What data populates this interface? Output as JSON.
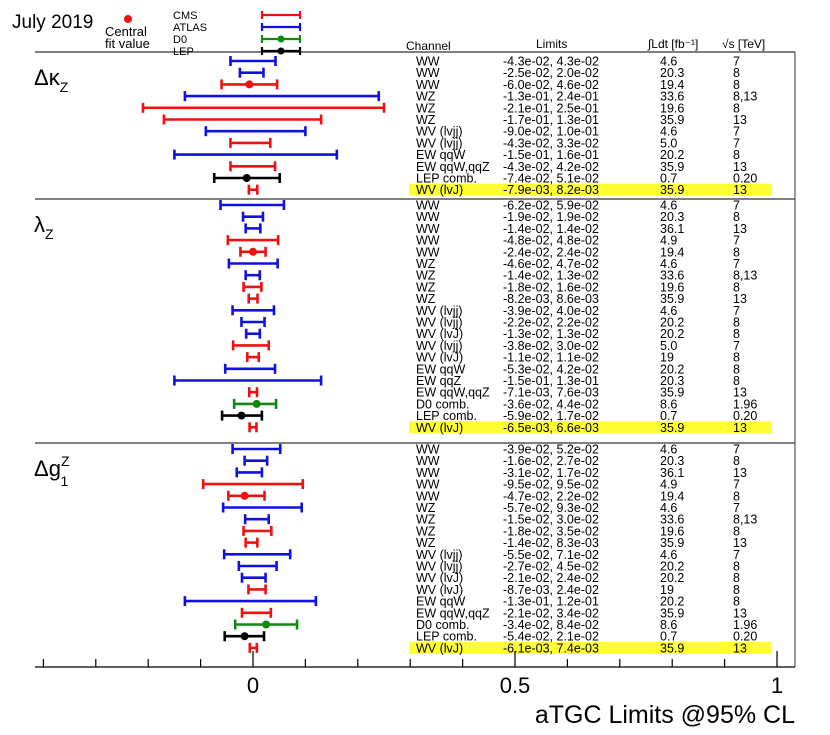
{
  "chart_data": {
    "type": "errorbar",
    "title": "July 2019",
    "xlabel": "aTGC Limits @95% CL",
    "xlim": [
      -0.41,
      1.02
    ],
    "xticks": [
      0,
      0.5,
      1
    ],
    "xtick_labels": [
      "0",
      "0.5",
      "1"
    ],
    "headers": {
      "channel": "Channel",
      "limits": "Limits",
      "lumi": "∫Ldt [fb⁻¹]",
      "energy": "√s [TeV]"
    },
    "legend": {
      "central_label_1": "Central",
      "central_label_2": "fit value",
      "entries": [
        {
          "name": "CMS",
          "color": "#ee1111"
        },
        {
          "name": "ATLAS",
          "color": "#1111dd"
        },
        {
          "name": "D0",
          "color": "#118811"
        },
        {
          "name": "LEP",
          "color": "#000000"
        }
      ]
    },
    "colors": {
      "CMS": "#ee1111",
      "ATLAS": "#1111dd",
      "D0": "#118811",
      "LEP": "#000000"
    },
    "highlight_color": "#ffff33",
    "panels": [
      {
        "label_main": "Δκ",
        "label_sub": "Z",
        "rows": [
          {
            "channel": "WW",
            "limits": "-4.3e-02, 4.3e-02",
            "lumi": "4.6",
            "energy": "7",
            "exp": "ATLAS",
            "low": -0.043,
            "high": 0.043,
            "central": null,
            "highlight": false
          },
          {
            "channel": "WW",
            "limits": "-2.5e-02, 2.0e-02",
            "lumi": "20.3",
            "energy": "8",
            "exp": "ATLAS",
            "low": -0.025,
            "high": 0.02,
            "central": null,
            "highlight": false
          },
          {
            "channel": "WW",
            "limits": "-6.0e-02, 4.6e-02",
            "lumi": "19.4",
            "energy": "8",
            "exp": "CMS",
            "low": -0.06,
            "high": 0.046,
            "central": -0.007,
            "highlight": false
          },
          {
            "channel": "WZ",
            "limits": "-1.3e-01, 2.4e-01",
            "lumi": "33.6",
            "energy": "8,13",
            "exp": "ATLAS",
            "low": -0.13,
            "high": 0.24,
            "central": null,
            "highlight": false
          },
          {
            "channel": "WZ",
            "limits": "-2.1e-01, 2.5e-01",
            "lumi": "19.6",
            "energy": "8",
            "exp": "CMS",
            "low": -0.21,
            "high": 0.25,
            "central": null,
            "highlight": false
          },
          {
            "channel": "WZ",
            "limits": "-1.7e-01, 1.3e-01",
            "lumi": "35.9",
            "energy": "13",
            "exp": "CMS",
            "low": -0.17,
            "high": 0.13,
            "central": null,
            "highlight": false
          },
          {
            "channel": "WV (lvjj)",
            "limits": "-9.0e-02, 1.0e-01",
            "lumi": "4.6",
            "energy": "7",
            "exp": "ATLAS",
            "low": -0.09,
            "high": 0.1,
            "central": null,
            "highlight": false
          },
          {
            "channel": "WV (lvjj)",
            "limits": "-4.3e-02, 3.3e-02",
            "lumi": "5.0",
            "energy": "7",
            "exp": "CMS",
            "low": -0.043,
            "high": 0.033,
            "central": null,
            "highlight": false
          },
          {
            "channel": "EW qqW",
            "limits": "-1.5e-01, 1.6e-01",
            "lumi": "20.2",
            "energy": "8",
            "exp": "ATLAS",
            "low": -0.15,
            "high": 0.16,
            "central": null,
            "highlight": false
          },
          {
            "channel": "EW qqW,qqZ",
            "limits": "-4.3e-02, 4.2e-02",
            "lumi": "35.9",
            "energy": "13",
            "exp": "CMS",
            "low": -0.043,
            "high": 0.042,
            "central": null,
            "highlight": false
          },
          {
            "channel": "LEP comb.",
            "limits": "-7.4e-02, 5.1e-02",
            "lumi": "0.7",
            "energy": "0.20",
            "exp": "LEP",
            "low": -0.074,
            "high": 0.051,
            "central": -0.012,
            "highlight": false
          },
          {
            "channel": "WV (lvJ)",
            "limits": "-7.9e-03, 8.2e-03",
            "lumi": "35.9",
            "energy": "13",
            "exp": "CMS",
            "low": -0.0079,
            "high": 0.0082,
            "central": null,
            "highlight": true
          }
        ]
      },
      {
        "label_main": "λ",
        "label_sub": "Z",
        "rows": [
          {
            "channel": "WW",
            "limits": "-6.2e-02, 5.9e-02",
            "lumi": "4.6",
            "energy": "7",
            "exp": "ATLAS",
            "low": -0.062,
            "high": 0.059,
            "central": null,
            "highlight": false
          },
          {
            "channel": "WW",
            "limits": "-1.9e-02, 1.9e-02",
            "lumi": "20.3",
            "energy": "8",
            "exp": "ATLAS",
            "low": -0.019,
            "high": 0.019,
            "central": null,
            "highlight": false
          },
          {
            "channel": "WW",
            "limits": "-1.4e-02, 1.4e-02",
            "lumi": "36.1",
            "energy": "13",
            "exp": "ATLAS",
            "low": -0.014,
            "high": 0.014,
            "central": null,
            "highlight": false
          },
          {
            "channel": "WW",
            "limits": "-4.8e-02, 4.8e-02",
            "lumi": "4.9",
            "energy": "7",
            "exp": "CMS",
            "low": -0.048,
            "high": 0.048,
            "central": null,
            "highlight": false
          },
          {
            "channel": "WW",
            "limits": "-2.4e-02, 2.4e-02",
            "lumi": "19.4",
            "energy": "8",
            "exp": "CMS",
            "low": -0.024,
            "high": 0.024,
            "central": 0.0,
            "highlight": false
          },
          {
            "channel": "WZ",
            "limits": "-4.6e-02, 4.7e-02",
            "lumi": "4.6",
            "energy": "7",
            "exp": "ATLAS",
            "low": -0.046,
            "high": 0.047,
            "central": null,
            "highlight": false
          },
          {
            "channel": "WZ",
            "limits": "-1.4e-02, 1.3e-02",
            "lumi": "33.6",
            "energy": "8,13",
            "exp": "ATLAS",
            "low": -0.014,
            "high": 0.013,
            "central": null,
            "highlight": false
          },
          {
            "channel": "WZ",
            "limits": "-1.8e-02, 1.6e-02",
            "lumi": "19.6",
            "energy": "8",
            "exp": "CMS",
            "low": -0.018,
            "high": 0.016,
            "central": null,
            "highlight": false
          },
          {
            "channel": "WZ",
            "limits": "-8.2e-03, 8.6e-03",
            "lumi": "35.9",
            "energy": "13",
            "exp": "CMS",
            "low": -0.0082,
            "high": 0.0086,
            "central": null,
            "highlight": false
          },
          {
            "channel": "WV (lvjj)",
            "limits": "-3.9e-02, 4.0e-02",
            "lumi": "4.6",
            "energy": "7",
            "exp": "ATLAS",
            "low": -0.039,
            "high": 0.04,
            "central": null,
            "highlight": false
          },
          {
            "channel": "WV (lvjj)",
            "limits": "-2.2e-02, 2.2e-02",
            "lumi": "20.2",
            "energy": "8",
            "exp": "ATLAS",
            "low": -0.022,
            "high": 0.022,
            "central": null,
            "highlight": false
          },
          {
            "channel": "WV (lvJ)",
            "limits": "-1.3e-02, 1.3e-02",
            "lumi": "20.2",
            "energy": "8",
            "exp": "ATLAS",
            "low": -0.013,
            "high": 0.013,
            "central": null,
            "highlight": false
          },
          {
            "channel": "WV (lvjj)",
            "limits": "-3.8e-02, 3.0e-02",
            "lumi": "5.0",
            "energy": "7",
            "exp": "CMS",
            "low": -0.038,
            "high": 0.03,
            "central": null,
            "highlight": false
          },
          {
            "channel": "WV (lvJ)",
            "limits": "-1.1e-02, 1.1e-02",
            "lumi": "19",
            "energy": "8",
            "exp": "CMS",
            "low": -0.011,
            "high": 0.011,
            "central": null,
            "highlight": false
          },
          {
            "channel": "EW qqW",
            "limits": "-5.3e-02, 4.2e-02",
            "lumi": "20.2",
            "energy": "8",
            "exp": "ATLAS",
            "low": -0.053,
            "high": 0.042,
            "central": null,
            "highlight": false
          },
          {
            "channel": "EW qqZ",
            "limits": "-1.5e-01, 1.3e-01",
            "lumi": "20.3",
            "energy": "8",
            "exp": "ATLAS",
            "low": -0.15,
            "high": 0.13,
            "central": null,
            "highlight": false
          },
          {
            "channel": "EW qqW,qqZ",
            "limits": "-7.1e-03, 7.6e-03",
            "lumi": "35.9",
            "energy": "13",
            "exp": "CMS",
            "low": -0.0071,
            "high": 0.0076,
            "central": null,
            "highlight": false
          },
          {
            "channel": "D0 comb.",
            "limits": "-3.6e-02, 4.4e-02",
            "lumi": "8.6",
            "energy": "1.96",
            "exp": "D0",
            "low": -0.036,
            "high": 0.044,
            "central": 0.007,
            "highlight": false
          },
          {
            "channel": "LEP comb.",
            "limits": "-5.9e-02, 1.7e-02",
            "lumi": "0.7",
            "energy": "0.20",
            "exp": "LEP",
            "low": -0.059,
            "high": 0.017,
            "central": -0.022,
            "highlight": false
          },
          {
            "channel": "WV (lvJ)",
            "limits": "-6.5e-03, 6.6e-03",
            "lumi": "35.9",
            "energy": "13",
            "exp": "CMS",
            "low": -0.0065,
            "high": 0.0066,
            "central": null,
            "highlight": true
          }
        ]
      },
      {
        "label_main": "Δg",
        "label_sup": "Z",
        "label_sub": "1",
        "rows": [
          {
            "channel": "WW",
            "limits": "-3.9e-02, 5.2e-02",
            "lumi": "4.6",
            "energy": "7",
            "exp": "ATLAS",
            "low": -0.039,
            "high": 0.052,
            "central": null,
            "highlight": false
          },
          {
            "channel": "WW",
            "limits": "-1.6e-02, 2.7e-02",
            "lumi": "20.3",
            "energy": "8",
            "exp": "ATLAS",
            "low": -0.016,
            "high": 0.027,
            "central": null,
            "highlight": false
          },
          {
            "channel": "WW",
            "limits": "-3.1e-02, 1.7e-02",
            "lumi": "36.1",
            "energy": "13",
            "exp": "ATLAS",
            "low": -0.031,
            "high": 0.017,
            "central": null,
            "highlight": false
          },
          {
            "channel": "WW",
            "limits": "-9.5e-02, 9.5e-02",
            "lumi": "4.9",
            "energy": "7",
            "exp": "CMS",
            "low": -0.095,
            "high": 0.095,
            "central": null,
            "highlight": false
          },
          {
            "channel": "WW",
            "limits": "-4.7e-02, 2.2e-02",
            "lumi": "19.4",
            "energy": "8",
            "exp": "CMS",
            "low": -0.047,
            "high": 0.022,
            "central": -0.016,
            "highlight": false
          },
          {
            "channel": "WZ",
            "limits": "-5.7e-02, 9.3e-02",
            "lumi": "4.6",
            "energy": "7",
            "exp": "ATLAS",
            "low": -0.057,
            "high": 0.093,
            "central": null,
            "highlight": false
          },
          {
            "channel": "WZ",
            "limits": "-1.5e-02, 3.0e-02",
            "lumi": "33.6",
            "energy": "8,13",
            "exp": "ATLAS",
            "low": -0.015,
            "high": 0.03,
            "central": null,
            "highlight": false
          },
          {
            "channel": "WZ",
            "limits": "-1.8e-02, 3.5e-02",
            "lumi": "19.6",
            "energy": "8",
            "exp": "CMS",
            "low": -0.018,
            "high": 0.035,
            "central": null,
            "highlight": false
          },
          {
            "channel": "WZ",
            "limits": "-1.4e-02, 8.3e-03",
            "lumi": "35.9",
            "energy": "13",
            "exp": "CMS",
            "low": -0.014,
            "high": 0.0083,
            "central": null,
            "highlight": false
          },
          {
            "channel": "WV (lvjj)",
            "limits": "-5.5e-02, 7.1e-02",
            "lumi": "4.6",
            "energy": "7",
            "exp": "ATLAS",
            "low": -0.055,
            "high": 0.071,
            "central": null,
            "highlight": false
          },
          {
            "channel": "WV (lvjj)",
            "limits": "-2.7e-02, 4.5e-02",
            "lumi": "20.2",
            "energy": "8",
            "exp": "ATLAS",
            "low": -0.027,
            "high": 0.045,
            "central": null,
            "highlight": false
          },
          {
            "channel": "WV (lvJ)",
            "limits": "-2.1e-02, 2.4e-02",
            "lumi": "20.2",
            "energy": "8",
            "exp": "ATLAS",
            "low": -0.021,
            "high": 0.024,
            "central": null,
            "highlight": false
          },
          {
            "channel": "WV (lvJ)",
            "limits": "-8.7e-03, 2.4e-02",
            "lumi": "19",
            "energy": "8",
            "exp": "CMS",
            "low": -0.0087,
            "high": 0.024,
            "central": null,
            "highlight": false
          },
          {
            "channel": "EW qqW",
            "limits": "-1.3e-01, 1.2e-01",
            "lumi": "20.2",
            "energy": "8",
            "exp": "ATLAS",
            "low": -0.13,
            "high": 0.12,
            "central": null,
            "highlight": false
          },
          {
            "channel": "EW qqW,qqZ",
            "limits": "-2.1e-02, 3.4e-02",
            "lumi": "35.9",
            "energy": "13",
            "exp": "CMS",
            "low": -0.021,
            "high": 0.034,
            "central": null,
            "highlight": false
          },
          {
            "channel": "D0 comb.",
            "limits": "-3.4e-02, 8.4e-02",
            "lumi": "8.6",
            "energy": "1.96",
            "exp": "D0",
            "low": -0.034,
            "high": 0.084,
            "central": 0.025,
            "highlight": false
          },
          {
            "channel": "LEP comb.",
            "limits": "-5.4e-02, 2.1e-02",
            "lumi": "0.7",
            "energy": "0.20",
            "exp": "LEP",
            "low": -0.054,
            "high": 0.021,
            "central": -0.016,
            "highlight": false
          },
          {
            "channel": "WV (lvJ)",
            "limits": "-6.1e-03, 7.4e-03",
            "lumi": "35.9",
            "energy": "13",
            "exp": "CMS",
            "low": -0.0061,
            "high": 0.0074,
            "central": null,
            "highlight": true
          }
        ]
      }
    ]
  }
}
